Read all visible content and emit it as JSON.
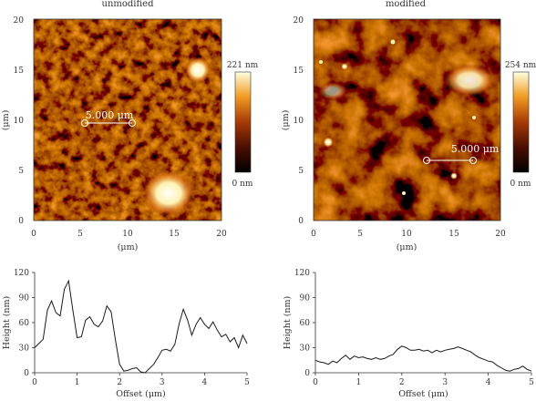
{
  "colors": {
    "afm_dark": "#1a0600",
    "afm_mid": "#8a2c08",
    "afm_orange": "#e07a1a",
    "afm_bright": "#fff2b0",
    "line": "#1a1a1a"
  },
  "panels": {
    "left": {
      "title": "unmodified",
      "ylabel": "(μm)",
      "xlabel": "(μm)",
      "x_ticks": [
        "0",
        "5",
        "10",
        "15",
        "20"
      ],
      "y_ticks": [
        "0",
        "5",
        "10",
        "15",
        "20"
      ],
      "scalebar_label": "5.000 μm",
      "colorbar_max": "221 nm",
      "colorbar_min": "0 nm"
    },
    "right": {
      "title": "modified",
      "ylabel": "(μm)",
      "xlabel": "(μm)",
      "x_ticks": [
        "0",
        "5",
        "10",
        "15",
        "20"
      ],
      "y_ticks": [
        "0",
        "5",
        "10",
        "15",
        "20"
      ],
      "scalebar_label": "5.000 μm",
      "colorbar_max": "254 nm",
      "colorbar_min": "0 nm"
    }
  },
  "chart_data": [
    {
      "type": "heatmap",
      "title": "unmodified",
      "xlabel": "(μm)",
      "ylabel": "(μm)",
      "xlim": [
        0,
        20
      ],
      "ylim": [
        0,
        20
      ],
      "colorbar": {
        "min": 0,
        "max": 221,
        "unit": "nm"
      },
      "scale_bar": {
        "length": 5.0,
        "unit": "μm"
      }
    },
    {
      "type": "heatmap",
      "title": "modified",
      "xlabel": "(μm)",
      "ylabel": "(μm)",
      "xlim": [
        0,
        20
      ],
      "ylim": [
        0,
        20
      ],
      "colorbar": {
        "min": 0,
        "max": 254,
        "unit": "nm"
      },
      "scale_bar": {
        "length": 5.0,
        "unit": "μm"
      }
    },
    {
      "type": "line",
      "xlabel": "Offset (μm)",
      "ylabel": "Height (nm)",
      "xlim": [
        0,
        5
      ],
      "ylim": [
        0,
        120
      ],
      "x_ticks": [
        "0",
        "1",
        "2",
        "3",
        "4",
        "5"
      ],
      "y_ticks": [
        "0",
        "30",
        "60",
        "90",
        "120"
      ],
      "x": [
        0,
        0.1,
        0.2,
        0.3,
        0.4,
        0.5,
        0.6,
        0.7,
        0.8,
        0.9,
        1.0,
        1.1,
        1.2,
        1.3,
        1.4,
        1.5,
        1.6,
        1.7,
        1.8,
        1.9,
        2.0,
        2.1,
        2.2,
        2.3,
        2.4,
        2.5,
        2.6,
        2.7,
        2.8,
        2.9,
        3.0,
        3.1,
        3.2,
        3.3,
        3.4,
        3.5,
        3.6,
        3.7,
        3.8,
        3.9,
        4.0,
        4.1,
        4.2,
        4.3,
        4.4,
        4.5,
        4.6,
        4.7,
        4.8,
        4.9,
        5.0
      ],
      "y": [
        30,
        35,
        40,
        75,
        86,
        72,
        68,
        100,
        110,
        75,
        42,
        43,
        63,
        67,
        58,
        55,
        62,
        80,
        73,
        40,
        10,
        2,
        3,
        5,
        6,
        1,
        0,
        5,
        10,
        18,
        27,
        28,
        26,
        34,
        58,
        76,
        63,
        45,
        58,
        66,
        58,
        53,
        61,
        51,
        43,
        46,
        37,
        42,
        30,
        45,
        35
      ]
    },
    {
      "type": "line",
      "xlabel": "Offset (μm)",
      "ylabel": "Height (nm)",
      "xlim": [
        0,
        5
      ],
      "ylim": [
        0,
        120
      ],
      "x_ticks": [
        "0",
        "1",
        "2",
        "3",
        "4",
        "5"
      ],
      "y_ticks": [
        "0",
        "30",
        "60",
        "90",
        "120"
      ],
      "x": [
        0,
        0.1,
        0.2,
        0.3,
        0.4,
        0.5,
        0.6,
        0.7,
        0.8,
        0.9,
        1.0,
        1.1,
        1.2,
        1.3,
        1.4,
        1.5,
        1.6,
        1.7,
        1.8,
        1.9,
        2.0,
        2.1,
        2.2,
        2.3,
        2.4,
        2.5,
        2.6,
        2.7,
        2.8,
        2.9,
        3.0,
        3.1,
        3.2,
        3.3,
        3.4,
        3.5,
        3.6,
        3.7,
        3.8,
        3.9,
        4.0,
        4.1,
        4.2,
        4.3,
        4.4,
        4.5,
        4.6,
        4.7,
        4.8,
        4.9,
        5.0
      ],
      "y": [
        15,
        13,
        12,
        10,
        14,
        12,
        17,
        21,
        16,
        20,
        18,
        19,
        17,
        16,
        18,
        16,
        17,
        20,
        22,
        28,
        32,
        30,
        27,
        27,
        28,
        26,
        27,
        24,
        27,
        25,
        27,
        28,
        29,
        31,
        29,
        27,
        25,
        21,
        18,
        16,
        14,
        13,
        9,
        6,
        3,
        2,
        4,
        5,
        8,
        4,
        2
      ]
    }
  ]
}
